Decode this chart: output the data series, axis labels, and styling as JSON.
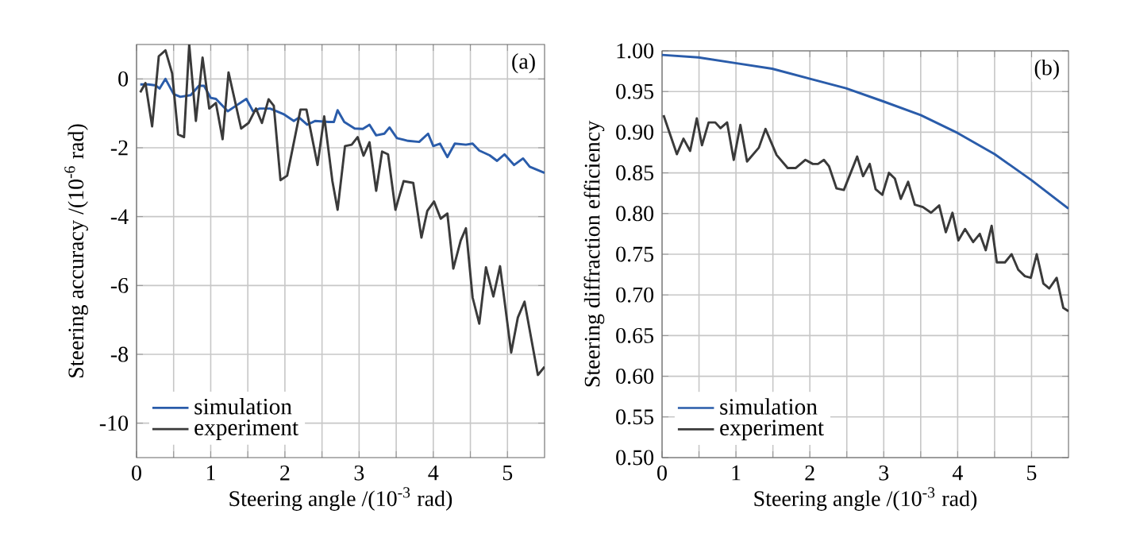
{
  "chart_data": [
    {
      "type": "line",
      "xlabel": "Steering angle /(10$^{-3}$ rad)",
      "ylabel": "Steering accuracy /(10$^{-6}$ rad)",
      "xlim": [
        0,
        5.5
      ],
      "ylim": [
        -11,
        1
      ],
      "xticks": [
        0,
        {
          "value": 0.5,
          "label": null
        },
        1,
        {
          "value": 1.5,
          "label": null
        },
        2,
        {
          "value": 2.5,
          "label": null
        },
        3,
        {
          "value": 3.5,
          "label": null
        },
        4,
        {
          "value": 4.5,
          "label": null
        },
        5
      ],
      "yticks": [
        -10,
        -8,
        -6,
        -4,
        -2,
        0
      ],
      "grid": true,
      "legend": "bottom left",
      "annotations": [
        "(a)"
      ],
      "series": [
        {
          "name": "simulation",
          "color": "#2a5caa",
          "x": [
            0.05,
            0.16,
            0.26,
            0.31,
            0.39,
            0.5,
            0.59,
            0.73,
            0.84,
            0.91,
            1.0,
            1.07,
            1.23,
            1.34,
            1.48,
            1.57,
            1.66,
            1.8,
            1.98,
            2.12,
            2.19,
            2.3,
            2.41,
            2.59,
            2.66,
            2.71,
            2.8,
            2.94,
            3.05,
            3.14,
            3.23,
            3.34,
            3.41,
            3.51,
            3.66,
            3.81,
            3.93,
            4.0,
            4.09,
            4.19,
            4.29,
            4.44,
            4.53,
            4.62,
            4.76,
            4.86,
            4.96,
            5.09,
            5.21,
            5.3,
            5.5
          ],
          "values": [
            -0.16,
            -0.16,
            -0.19,
            -0.28,
            0,
            -0.44,
            -0.52,
            -0.47,
            -0.2,
            -0.2,
            -0.55,
            -0.58,
            -0.94,
            -0.78,
            -0.58,
            -0.94,
            -0.86,
            -0.86,
            -1.02,
            -1.22,
            -1.12,
            -1.33,
            -1.22,
            -1.25,
            -1.25,
            -0.91,
            -1.25,
            -1.44,
            -1.45,
            -1.33,
            -1.64,
            -1.59,
            -1.41,
            -1.72,
            -1.8,
            -1.83,
            -1.59,
            -1.95,
            -1.88,
            -2.27,
            -1.88,
            -1.91,
            -1.88,
            -2.08,
            -2.22,
            -2.38,
            -2.19,
            -2.5,
            -2.31,
            -2.55,
            -2.73
          ]
        },
        {
          "name": "experiment",
          "color": "#3a3a3a",
          "x": [
            0.05,
            0.12,
            0.21,
            0.3,
            0.39,
            0.48,
            0.56,
            0.64,
            0.71,
            0.8,
            0.89,
            0.98,
            1.07,
            1.16,
            1.24,
            1.41,
            1.51,
            1.61,
            1.69,
            1.78,
            1.85,
            1.94,
            2.03,
            2.21,
            2.29,
            2.44,
            2.53,
            2.64,
            2.71,
            2.81,
            2.9,
            2.98,
            3.06,
            3.14,
            3.23,
            3.31,
            3.39,
            3.49,
            3.6,
            3.73,
            3.84,
            3.92,
            4.01,
            4.1,
            4.19,
            4.27,
            4.37,
            4.44,
            4.53,
            4.62,
            4.71,
            4.81,
            4.9,
            5.05,
            5.14,
            5.23,
            5.41,
            5.5
          ],
          "values": [
            -0.39,
            -0.12,
            -1.38,
            0.66,
            0.83,
            0.16,
            -1.61,
            -1.69,
            1.0,
            -1.22,
            0.62,
            -0.86,
            -0.7,
            -1.75,
            0.19,
            -1.44,
            -1.28,
            -0.86,
            -1.28,
            -0.59,
            -0.78,
            -2.94,
            -2.81,
            -0.89,
            -0.89,
            -2.5,
            -1.09,
            -2.97,
            -3.8,
            -1.95,
            -1.91,
            -1.69,
            -2.23,
            -1.84,
            -3.25,
            -2.11,
            -2.19,
            -3.8,
            -2.97,
            -3.02,
            -4.61,
            -3.83,
            -3.56,
            -4.06,
            -3.91,
            -5.51,
            -4.69,
            -4.34,
            -6.35,
            -7.11,
            -5.47,
            -6.32,
            -5.44,
            -7.95,
            -6.93,
            -6.47,
            -8.6,
            -8.36
          ]
        }
      ]
    },
    {
      "type": "line",
      "xlabel": "Steering angle /(10$^{-3}$ rad)",
      "ylabel": "Steering diffraction efficiency",
      "xlim": [
        0,
        5.5
      ],
      "ylim": [
        0.5,
        1.0
      ],
      "xticks": [
        0,
        {
          "value": 0.5,
          "label": null
        },
        1,
        {
          "value": 1.5,
          "label": null
        },
        2,
        {
          "value": 2.5,
          "label": null
        },
        3,
        {
          "value": 3.5,
          "label": null
        },
        4,
        {
          "value": 4.5,
          "label": null
        },
        5
      ],
      "yticks": [
        {
          "value": 0.5,
          "label": "0.50"
        },
        {
          "value": 0.55,
          "label": "0.55"
        },
        {
          "value": 0.6,
          "label": "0.60"
        },
        {
          "value": 0.65,
          "label": "0.65"
        },
        {
          "value": 0.7,
          "label": "0.70"
        },
        {
          "value": 0.75,
          "label": "0.75"
        },
        {
          "value": 0.8,
          "label": "0.80"
        },
        {
          "value": 0.85,
          "label": "0.85"
        },
        {
          "value": 0.9,
          "label": "0.90"
        },
        {
          "value": 0.95,
          "label": "0.95"
        },
        {
          "value": 1.0,
          "label": "1.00"
        }
      ],
      "grid": true,
      "legend": "bottom left",
      "annotations": [
        "(b)"
      ],
      "series": [
        {
          "name": "simulation",
          "color": "#2a5caa",
          "x": [
            0.0,
            0.49,
            0.99,
            1.49,
            1.99,
            2.49,
            2.99,
            3.5,
            4.0,
            4.5,
            5.0,
            5.5
          ],
          "values": [
            0.995,
            0.992,
            0.985,
            0.978,
            0.966,
            0.954,
            0.938,
            0.921,
            0.899,
            0.873,
            0.841,
            0.806
          ]
        },
        {
          "name": "experiment",
          "color": "#3a3a3a",
          "x": [
            0.02,
            0.2,
            0.29,
            0.38,
            0.47,
            0.54,
            0.63,
            0.72,
            0.79,
            0.88,
            0.97,
            1.06,
            1.15,
            1.31,
            1.4,
            1.55,
            1.7,
            1.81,
            1.94,
            2.04,
            2.11,
            2.19,
            2.26,
            2.36,
            2.46,
            2.64,
            2.72,
            2.81,
            2.89,
            2.98,
            3.07,
            3.15,
            3.23,
            3.33,
            3.42,
            3.53,
            3.64,
            3.75,
            3.84,
            3.93,
            4.01,
            4.1,
            4.21,
            4.3,
            4.38,
            4.46,
            4.53,
            4.64,
            4.73,
            4.82,
            4.91,
            4.99,
            5.07,
            5.16,
            5.24,
            5.34,
            5.43,
            5.5
          ],
          "values": [
            0.921,
            0.873,
            0.892,
            0.877,
            0.917,
            0.884,
            0.912,
            0.912,
            0.905,
            0.912,
            0.866,
            0.909,
            0.864,
            0.881,
            0.904,
            0.872,
            0.856,
            0.856,
            0.866,
            0.861,
            0.861,
            0.866,
            0.858,
            0.831,
            0.829,
            0.87,
            0.846,
            0.861,
            0.83,
            0.823,
            0.85,
            0.843,
            0.818,
            0.839,
            0.811,
            0.808,
            0.801,
            0.81,
            0.777,
            0.801,
            0.767,
            0.781,
            0.765,
            0.775,
            0.755,
            0.785,
            0.74,
            0.74,
            0.75,
            0.731,
            0.723,
            0.721,
            0.75,
            0.714,
            0.708,
            0.721,
            0.684,
            0.68
          ]
        }
      ]
    }
  ]
}
